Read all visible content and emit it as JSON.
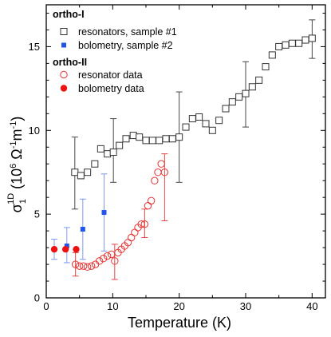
{
  "colors": {
    "resonators": "#333333",
    "bolometry_sample2": "#2255ee",
    "resonator_data": "#e83030",
    "bolometry_data": "#ee1111"
  },
  "chart_data": {
    "type": "scatter",
    "xlabel": "Temperature (K)",
    "ylabel_main": "σ",
    "ylabel_sub": "1",
    "ylabel_sup": "1D",
    "ylabel_rest": " (10",
    "ylabel_exp": "6",
    "ylabel_units": " Ω",
    "ylabel_exp2": "-1",
    "ylabel_m": "m",
    "ylabel_exp3": "-1",
    "ylabel_close": ")",
    "xlim": [
      0,
      42
    ],
    "ylim": [
      0,
      17.5
    ],
    "x_ticks": [
      0,
      10,
      20,
      30,
      40
    ],
    "y_ticks": [
      0,
      5,
      10,
      15
    ],
    "legend_position": "top-left",
    "legend": {
      "group1": "ortho-I",
      "group2": "ortho-II"
    },
    "series": [
      {
        "name": "resonators, sample #1",
        "marker": "open-square",
        "color_key": "resonators",
        "points": [
          [
            4.3,
            7.5
          ],
          [
            5.2,
            7.3
          ],
          [
            6.2,
            7.5
          ],
          [
            7.3,
            8.0
          ],
          [
            8.2,
            8.9
          ],
          [
            9.2,
            8.6
          ],
          [
            10.1,
            8.7
          ],
          [
            11.0,
            9.1
          ],
          [
            12.0,
            9.5
          ],
          [
            13.1,
            9.7
          ],
          [
            14.0,
            9.6
          ],
          [
            15.0,
            9.4
          ],
          [
            16.0,
            9.4
          ],
          [
            17.0,
            9.4
          ],
          [
            18.0,
            9.5
          ],
          [
            19.0,
            9.5
          ],
          [
            20.0,
            9.6
          ],
          [
            21.0,
            10.2
          ],
          [
            22.0,
            10.7
          ],
          [
            23.0,
            10.8
          ],
          [
            24.0,
            10.4
          ],
          [
            25.0,
            10.0
          ],
          [
            26.0,
            10.6
          ],
          [
            27.0,
            11.3
          ],
          [
            28.0,
            11.7
          ],
          [
            29.0,
            12.0
          ],
          [
            30.0,
            12.2
          ],
          [
            31.0,
            12.6
          ],
          [
            32.0,
            13.0
          ],
          [
            33.0,
            13.8
          ],
          [
            34.0,
            14.5
          ],
          [
            35.0,
            15.0
          ],
          [
            36.0,
            15.1
          ],
          [
            37.0,
            15.2
          ],
          [
            38.0,
            15.2
          ],
          [
            39.0,
            15.4
          ],
          [
            40.0,
            15.5
          ]
        ],
        "error_bars": [
          {
            "x": 4.3,
            "low": 5.3,
            "high": 9.6
          },
          {
            "x": 10.1,
            "low": 6.9,
            "high": 10.7
          },
          {
            "x": 20.0,
            "low": 6.9,
            "high": 12.3
          },
          {
            "x": 30.0,
            "low": 10.2,
            "high": 14.1
          },
          {
            "x": 40.0,
            "low": 14.3,
            "high": 16.6
          }
        ]
      },
      {
        "name": "bolometry, sample #2",
        "marker": "filled-square",
        "color_key": "bolometry_sample2",
        "points": [
          [
            1.2,
            2.9
          ],
          [
            3.1,
            3.1
          ],
          [
            5.5,
            4.1
          ],
          [
            8.7,
            5.1
          ]
        ],
        "error_bars": [
          {
            "x": 1.2,
            "low": 2.3,
            "high": 3.5
          },
          {
            "x": 3.1,
            "low": 2.1,
            "high": 4.2
          },
          {
            "x": 5.5,
            "low": 2.3,
            "high": 5.9
          },
          {
            "x": 8.7,
            "low": 2.8,
            "high": 7.4
          }
        ]
      },
      {
        "name": "resonator data",
        "marker": "open-circle",
        "color_key": "resonator_data",
        "points": [
          [
            4.4,
            2.0
          ],
          [
            5.0,
            1.9
          ],
          [
            5.6,
            1.9
          ],
          [
            6.2,
            1.85
          ],
          [
            6.8,
            1.9
          ],
          [
            7.4,
            2.0
          ],
          [
            8.0,
            2.2
          ],
          [
            8.6,
            2.35
          ],
          [
            9.2,
            2.5
          ],
          [
            9.8,
            2.6
          ],
          [
            10.3,
            2.2
          ],
          [
            10.8,
            2.7
          ],
          [
            11.3,
            2.9
          ],
          [
            11.8,
            3.1
          ],
          [
            12.3,
            3.3
          ],
          [
            12.8,
            3.6
          ],
          [
            13.3,
            3.9
          ],
          [
            13.8,
            4.2
          ],
          [
            14.3,
            4.4
          ],
          [
            14.8,
            4.4
          ],
          [
            15.3,
            5.5
          ],
          [
            15.8,
            5.8
          ],
          [
            16.3,
            7.0
          ],
          [
            16.8,
            7.5
          ],
          [
            17.3,
            8.0
          ],
          [
            17.8,
            7.5
          ]
        ],
        "error_bars": [
          {
            "x": 4.4,
            "low": 1.3,
            "high": 2.7
          },
          {
            "x": 10.3,
            "low": 1.1,
            "high": 3.2
          },
          {
            "x": 14.8,
            "low": 3.6,
            "high": 5.3
          },
          {
            "x": 17.8,
            "low": 4.6,
            "high": 8.6
          }
        ]
      },
      {
        "name": "bolometry data",
        "marker": "filled-circle",
        "color_key": "bolometry_data",
        "points": [
          [
            1.2,
            2.9
          ],
          [
            2.9,
            2.9
          ],
          [
            4.5,
            2.9
          ]
        ],
        "error_bars": []
      }
    ]
  }
}
